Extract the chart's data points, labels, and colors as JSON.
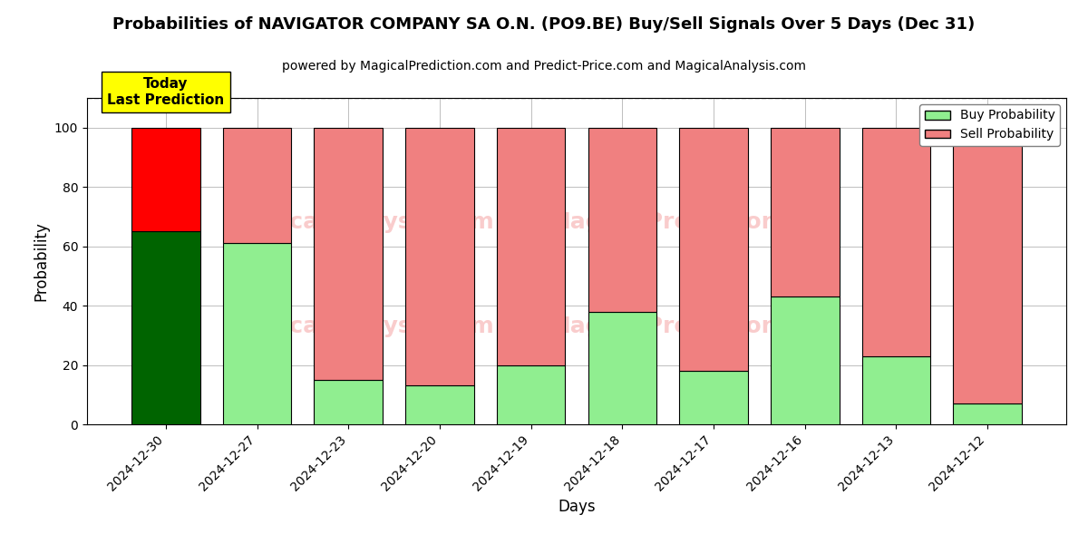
{
  "title": "Probabilities of NAVIGATOR COMPANY SA O.N. (PO9.BE) Buy/Sell Signals Over 5 Days (Dec 31)",
  "subtitle": "powered by MagicalPrediction.com and Predict-Price.com and MagicalAnalysis.com",
  "xlabel": "Days",
  "ylabel": "Probability",
  "categories": [
    "2024-12-30",
    "2024-12-27",
    "2024-12-23",
    "2024-12-20",
    "2024-12-19",
    "2024-12-18",
    "2024-12-17",
    "2024-12-16",
    "2024-12-13",
    "2024-12-12"
  ],
  "buy_values": [
    65,
    61,
    15,
    13,
    20,
    38,
    18,
    43,
    23,
    7
  ],
  "sell_values": [
    35,
    39,
    85,
    87,
    80,
    62,
    82,
    57,
    77,
    93
  ],
  "buy_colors": [
    "#006400",
    "#90EE90",
    "#90EE90",
    "#90EE90",
    "#90EE90",
    "#90EE90",
    "#90EE90",
    "#90EE90",
    "#90EE90",
    "#90EE90"
  ],
  "sell_colors": [
    "#FF0000",
    "#F08080",
    "#F08080",
    "#F08080",
    "#F08080",
    "#F08080",
    "#F08080",
    "#F08080",
    "#F08080",
    "#F08080"
  ],
  "ylim": [
    0,
    110
  ],
  "yticks": [
    0,
    20,
    40,
    60,
    80,
    100
  ],
  "dashed_line_y": 110,
  "today_label": "Today\nLast Prediction",
  "today_box_color": "#FFFF00",
  "legend_buy_color": "#90EE90",
  "legend_sell_color": "#F08080",
  "bar_width": 0.75,
  "title_fontsize": 13,
  "subtitle_fontsize": 10,
  "axis_label_fontsize": 12,
  "tick_fontsize": 10
}
